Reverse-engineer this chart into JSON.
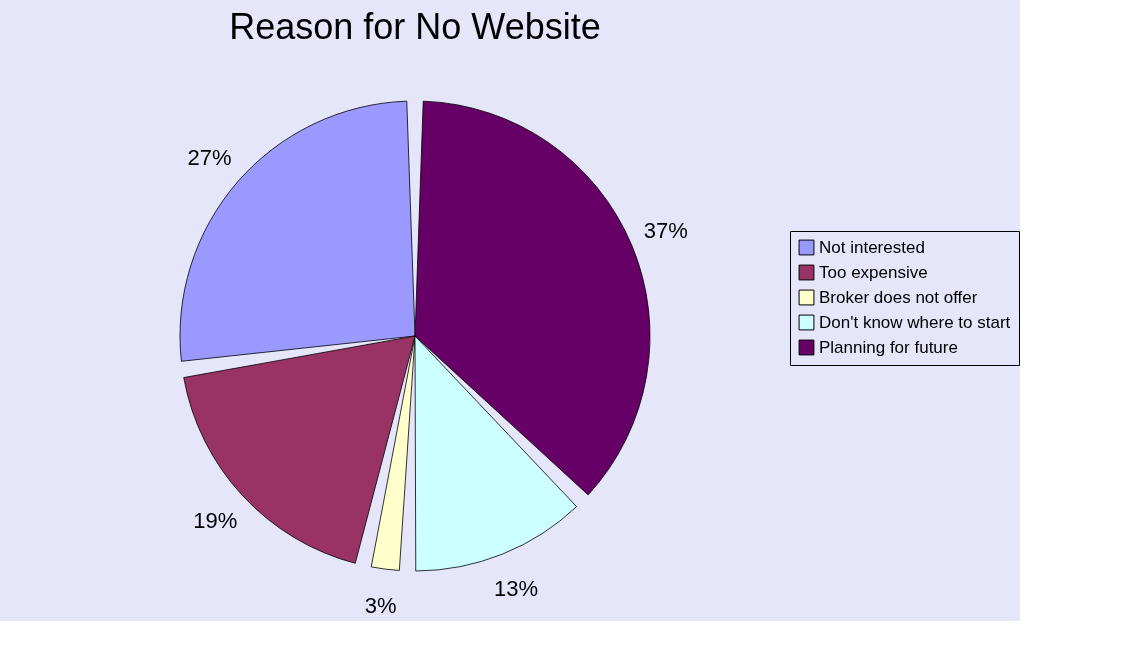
{
  "chart_data": {
    "type": "pie",
    "title": "Reason for No Website",
    "categories": [
      "Not interested",
      "Too expensive",
      "Broker does not offer",
      "Don't know where to start",
      "Planning for future"
    ],
    "values": [
      27,
      19,
      3,
      13,
      37
    ],
    "value_labels": [
      "27%",
      "19%",
      "3%",
      "13%",
      "37%"
    ],
    "colors": [
      "#9999ff",
      "#993366",
      "#ffffcc",
      "#ccffff",
      "#660066"
    ],
    "legend": "right"
  }
}
